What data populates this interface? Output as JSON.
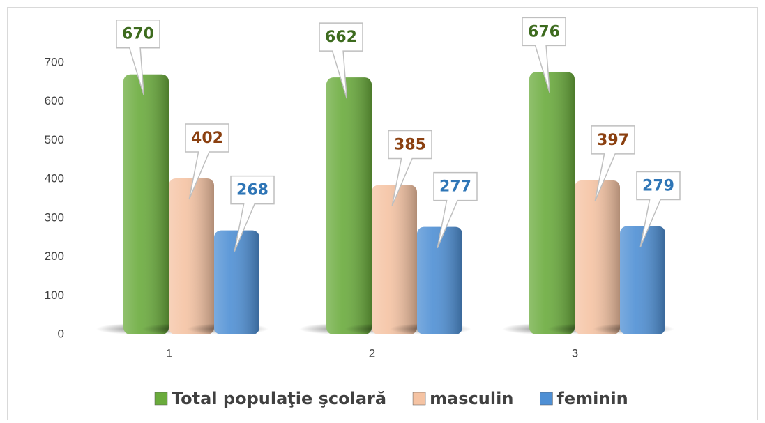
{
  "chart_data": {
    "type": "bar",
    "categories": [
      "1",
      "2",
      "3"
    ],
    "series": [
      {
        "name": "Total populaţie şcolară",
        "color": "#6aab3c",
        "label_color": "#3d6b1e",
        "values": [
          670,
          662,
          676
        ]
      },
      {
        "name": "masculin",
        "color": "#f5c3a3",
        "label_color": "#8b4010",
        "values": [
          402,
          385,
          397
        ]
      },
      {
        "name": "feminin",
        "color": "#4e8fd4",
        "label_color": "#2e75b6",
        "values": [
          268,
          277,
          279
        ]
      }
    ],
    "ylim": [
      0,
      700
    ],
    "yticks": [
      0,
      100,
      200,
      300,
      400,
      500,
      600,
      700
    ],
    "grid": false,
    "legend": "bottom"
  }
}
